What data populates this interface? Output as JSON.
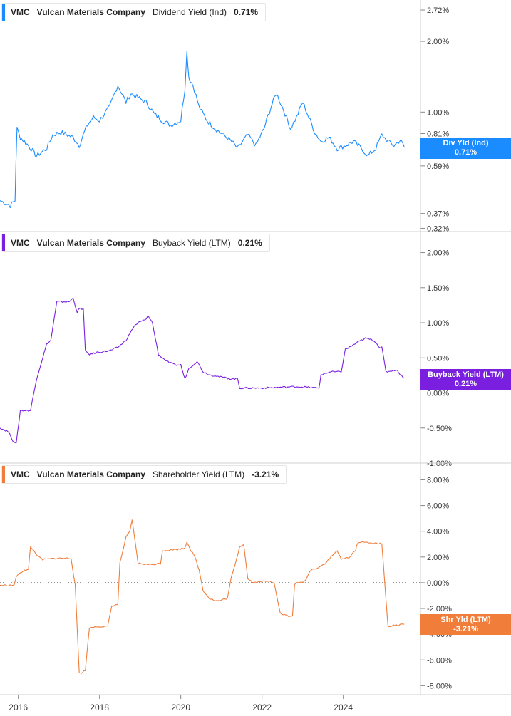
{
  "colors": {
    "dividend": "#1a8cff",
    "buyback": "#7a1fe0",
    "shareholder": "#f07d3a",
    "grid": "#dddddd",
    "axis_text": "#333333"
  },
  "x_axis": {
    "ticks": [
      "2016",
      "2018",
      "2020",
      "2022",
      "2024"
    ],
    "range": [
      2015.6,
      2025.95
    ]
  },
  "panels": [
    {
      "ticker": "VMC",
      "company": "Vulcan Materials Company",
      "metric": "Dividend Yield (Ind)",
      "value": "0.71%",
      "badge_label": "Div Yld (Ind)",
      "badge_value": "0.71%",
      "ticks": [
        "2.72%",
        "2.00%",
        "1.00%",
        "0.81%",
        "0.59%",
        "0.37%",
        "0.32%"
      ],
      "scale": "log"
    },
    {
      "ticker": "VMC",
      "company": "Vulcan Materials Company",
      "metric": "Buyback Yield (LTM)",
      "value": "0.21%",
      "badge_label": "Buyback Yield (LTM)",
      "badge_value": "0.21%",
      "ticks": [
        "2.00%",
        "1.50%",
        "1.00%",
        "0.50%",
        "0.00%",
        "-0.50%",
        "-1.00%"
      ],
      "scale": "linear"
    },
    {
      "ticker": "VMC",
      "company": "Vulcan Materials Company",
      "metric": "Shareholder Yield (LTM)",
      "value": "-3.21%",
      "badge_label": "Shr Yld (LTM)",
      "badge_value": "-3.21%",
      "ticks": [
        "8.00%",
        "6.00%",
        "4.00%",
        "2.00%",
        "0.00%",
        "-2.00%",
        "-4.00%",
        "-6.00%",
        "-8.00%"
      ],
      "scale": "linear"
    }
  ],
  "chart_data": [
    {
      "type": "line",
      "series": [
        {
          "name": "Dividend Yield (Ind)",
          "x": [
            2015.6,
            2015.85,
            2015.97,
            2016.02,
            2016.1,
            2016.3,
            2016.5,
            2016.75,
            2016.9,
            2017.1,
            2017.4,
            2017.55,
            2017.75,
            2017.9,
            2018.05,
            2018.3,
            2018.5,
            2018.7,
            2018.82,
            2019.0,
            2019.2,
            2019.4,
            2019.6,
            2019.8,
            2020.05,
            2020.15,
            2020.2,
            2020.25,
            2020.35,
            2020.5,
            2020.7,
            2020.9,
            2021.1,
            2021.3,
            2021.45,
            2021.7,
            2021.9,
            2022.1,
            2022.4,
            2022.55,
            2022.75,
            2022.9,
            2023.05,
            2023.2,
            2023.35,
            2023.5,
            2023.7,
            2023.9,
            2024.1,
            2024.3,
            2024.5,
            2024.65,
            2024.85,
            2025.0,
            2025.15,
            2025.3,
            2025.45,
            2025.55
          ],
          "y": [
            0.42,
            0.4,
            0.42,
            0.85,
            0.78,
            0.72,
            0.65,
            0.7,
            0.8,
            0.82,
            0.78,
            0.72,
            0.88,
            0.95,
            0.92,
            1.05,
            1.3,
            1.1,
            1.2,
            1.15,
            1.1,
            0.98,
            0.92,
            0.88,
            0.92,
            1.25,
            1.8,
            1.4,
            1.3,
            1.05,
            0.92,
            0.85,
            0.8,
            0.75,
            0.7,
            0.8,
            0.72,
            0.85,
            1.2,
            1.05,
            0.85,
            0.95,
            1.1,
            0.95,
            0.82,
            0.75,
            0.78,
            0.7,
            0.72,
            0.75,
            0.7,
            0.65,
            0.7,
            0.8,
            0.75,
            0.72,
            0.76,
            0.71
          ]
        }
      ],
      "ylim": [
        0.31,
        3.0
      ]
    },
    {
      "type": "line",
      "series": [
        {
          "name": "Buyback Yield (LTM)",
          "x": [
            2015.6,
            2015.8,
            2015.92,
            2016.0,
            2016.1,
            2016.3,
            2016.35,
            2016.5,
            2016.55,
            2016.75,
            2016.8,
            2016.85,
            2017.0,
            2017.3,
            2017.4,
            2017.5,
            2017.55,
            2017.65,
            2017.7,
            2017.8,
            2018.0,
            2018.3,
            2018.5,
            2018.7,
            2018.8,
            2018.9,
            2019.0,
            2019.2,
            2019.25,
            2019.35,
            2019.5,
            2019.7,
            2019.9,
            2020.05,
            2020.1,
            2020.15,
            2020.25,
            2020.35,
            2020.45,
            2020.6,
            2020.8,
            2020.9,
            2021.0,
            2021.3,
            2021.45,
            2021.5,
            2022.0,
            2022.5,
            2022.9,
            2023.2,
            2023.4,
            2023.45,
            2023.5,
            2023.6,
            2023.75,
            2023.9,
            2024.0,
            2024.1,
            2024.2,
            2024.4,
            2024.6,
            2024.8,
            2024.95,
            2025.0,
            2025.1,
            2025.35,
            2025.55
          ],
          "y": [
            -0.5,
            -0.55,
            -0.68,
            -0.72,
            -0.25,
            -0.25,
            -0.25,
            0.2,
            0.3,
            0.7,
            0.72,
            0.75,
            1.3,
            1.3,
            1.35,
            1.15,
            1.2,
            1.2,
            0.6,
            0.55,
            0.58,
            0.6,
            0.65,
            0.75,
            0.85,
            0.95,
            1.0,
            1.05,
            1.1,
            1.0,
            0.55,
            0.45,
            0.4,
            0.4,
            0.3,
            0.2,
            0.35,
            0.4,
            0.45,
            0.3,
            0.25,
            0.25,
            0.23,
            0.2,
            0.2,
            0.07,
            0.07,
            0.08,
            0.09,
            0.08,
            0.07,
            0.07,
            0.25,
            0.28,
            0.3,
            0.3,
            0.3,
            0.62,
            0.65,
            0.72,
            0.78,
            0.75,
            0.65,
            0.65,
            0.3,
            0.33,
            0.21
          ]
        }
      ],
      "ylim": [
        -1.0,
        2.0
      ]
    },
    {
      "type": "line",
      "series": [
        {
          "name": "Shareholder Yield (LTM)",
          "x": [
            2015.6,
            2015.95,
            2016.0,
            2016.2,
            2016.3,
            2016.35,
            2016.55,
            2016.65,
            2017.0,
            2017.35,
            2017.45,
            2017.55,
            2017.6,
            2017.7,
            2017.8,
            2018.0,
            2018.25,
            2018.35,
            2018.5,
            2018.55,
            2018.7,
            2018.8,
            2018.85,
            2019.0,
            2019.3,
            2019.55,
            2019.6,
            2020.0,
            2020.15,
            2020.2,
            2020.3,
            2020.4,
            2020.5,
            2020.6,
            2020.75,
            2020.9,
            2021.0,
            2021.2,
            2021.3,
            2021.35,
            2021.5,
            2021.6,
            2021.7,
            2021.85,
            2022.0,
            2022.25,
            2022.35,
            2022.5,
            2022.7,
            2022.8,
            2022.85,
            2023.1,
            2023.25,
            2023.45,
            2023.6,
            2023.75,
            2023.9,
            2024.0,
            2024.2,
            2024.35,
            2024.4,
            2024.6,
            2024.75,
            2024.85,
            2025.0,
            2025.15,
            2025.35,
            2025.55
          ],
          "y": [
            -0.2,
            -0.2,
            0.5,
            1.0,
            1.0,
            2.8,
            2.0,
            1.8,
            1.9,
            1.9,
            -0.2,
            -7.0,
            -7.0,
            -6.8,
            -3.5,
            -3.4,
            -3.4,
            -1.8,
            -1.7,
            1.5,
            3.5,
            4.0,
            4.9,
            1.5,
            1.4,
            1.5,
            2.5,
            2.6,
            2.7,
            3.2,
            2.5,
            2.0,
            1.0,
            -0.6,
            -1.2,
            -1.4,
            -1.4,
            -1.2,
            0.5,
            1.0,
            2.8,
            3.0,
            0.3,
            0.0,
            0.1,
            0.1,
            0.0,
            -2.4,
            -2.6,
            -2.6,
            -0.1,
            0.1,
            1.0,
            1.2,
            1.5,
            2.0,
            2.5,
            1.8,
            2.0,
            2.5,
            3.1,
            3.2,
            3.0,
            3.1,
            3.0,
            -3.4,
            -3.3,
            -3.21
          ]
        }
      ],
      "ylim": [
        -8.0,
        8.0
      ]
    }
  ]
}
